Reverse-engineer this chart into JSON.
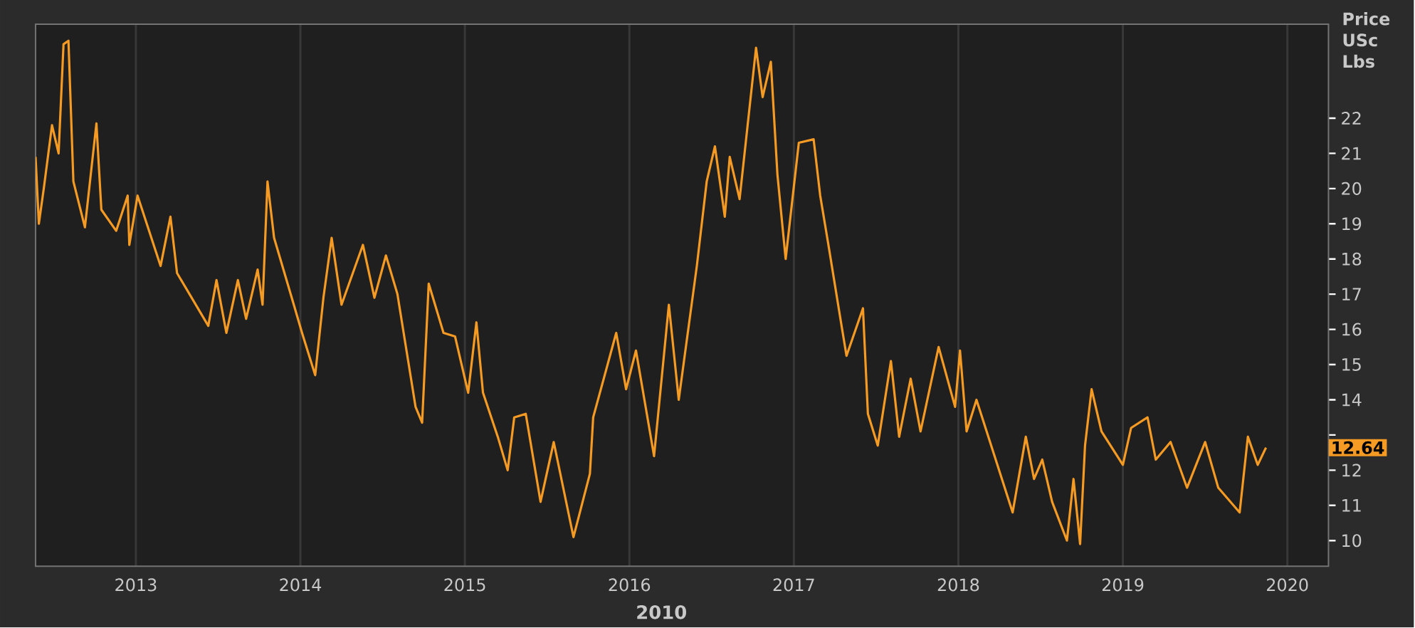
{
  "chart_data": {
    "type": "line",
    "ylabel": "Price USc Lbs",
    "color": "#f59a23",
    "x": [
      2012.39,
      2012.41,
      2012.44,
      2012.49,
      2012.53,
      2012.56,
      2012.59,
      2012.62,
      2012.69,
      2012.76,
      2012.79,
      2012.88,
      2012.95,
      2012.96,
      2013.01,
      2013.15,
      2013.21,
      2013.25,
      2013.44,
      2013.49,
      2013.55,
      2013.62,
      2013.67,
      2013.74,
      2013.77,
      2013.8,
      2013.84,
      2013.96,
      2014.01,
      2014.09,
      2014.14,
      2014.19,
      2014.25,
      2014.38,
      2014.45,
      2014.52,
      2014.59,
      2014.7,
      2014.74,
      2014.78,
      2014.87,
      2014.94,
      2015.02,
      2015.07,
      2015.11,
      2015.2,
      2015.26,
      2015.3,
      2015.37,
      2015.46,
      2015.54,
      2015.66,
      2015.76,
      2015.78,
      2015.92,
      2015.98,
      2016.04,
      2016.15,
      2016.24,
      2016.3,
      2016.41,
      2016.47,
      2016.52,
      2016.58,
      2016.61,
      2016.67,
      2016.77,
      2016.81,
      2016.86,
      2016.9,
      2016.95,
      2017.03,
      2017.12,
      2017.16,
      2017.21,
      2017.29,
      2017.32,
      2017.42,
      2017.45,
      2017.51,
      2017.59,
      2017.64,
      2017.71,
      2017.77,
      2017.88,
      2017.98,
      2018.01,
      2018.05,
      2018.11,
      2018.22,
      2018.33,
      2018.41,
      2018.46,
      2018.51,
      2018.57,
      2018.66,
      2018.7,
      2018.74,
      2018.77,
      2018.81,
      2018.87,
      2019.0,
      2019.05,
      2019.15,
      2019.2,
      2019.29,
      2019.39,
      2019.5,
      2019.58,
      2019.71,
      2019.76,
      2019.82,
      2019.87
    ],
    "values": [
      20.9,
      19.0,
      20.0,
      21.8,
      21.0,
      24.1,
      24.2,
      20.2,
      18.9,
      21.85,
      19.4,
      18.8,
      19.8,
      18.4,
      19.8,
      17.8,
      19.2,
      17.6,
      16.1,
      17.4,
      15.9,
      17.4,
      16.3,
      17.7,
      16.7,
      20.2,
      18.6,
      16.7,
      15.9,
      14.7,
      16.9,
      18.6,
      16.7,
      18.4,
      16.9,
      18.1,
      17.0,
      13.8,
      13.35,
      17.3,
      15.9,
      15.8,
      14.2,
      16.2,
      14.2,
      12.95,
      12.0,
      13.5,
      13.6,
      11.1,
      12.8,
      10.1,
      11.9,
      13.5,
      15.9,
      14.3,
      15.4,
      12.4,
      16.7,
      14.0,
      17.8,
      20.2,
      21.2,
      19.2,
      20.9,
      19.7,
      24.0,
      22.6,
      23.6,
      20.4,
      18.0,
      21.3,
      21.4,
      19.8,
      18.4,
      16.1,
      15.25,
      16.6,
      13.6,
      12.7,
      15.1,
      12.95,
      14.6,
      13.1,
      15.5,
      13.8,
      15.4,
      13.1,
      14.0,
      12.4,
      10.8,
      12.95,
      11.75,
      12.3,
      11.1,
      10.0,
      11.75,
      9.9,
      12.7,
      14.3,
      13.1,
      12.15,
      13.2,
      13.5,
      12.3,
      12.8,
      11.5,
      12.8,
      11.5,
      10.8,
      12.95,
      12.15,
      12.64
    ],
    "xlim": [
      2012.39,
      2020.25
    ],
    "ylim": [
      9.27,
      24.67
    ],
    "xticks": [
      2013,
      2014,
      2015,
      2016,
      2017,
      2018,
      2019,
      2020
    ],
    "yticks": [
      10,
      11,
      12,
      {
        "value": 13,
        "label": null
      },
      14,
      15,
      16,
      17,
      18,
      19,
      20,
      21,
      22
    ],
    "grid": "x",
    "line_style": "solid",
    "annotations": [
      "2010",
      "12.64"
    ]
  }
}
